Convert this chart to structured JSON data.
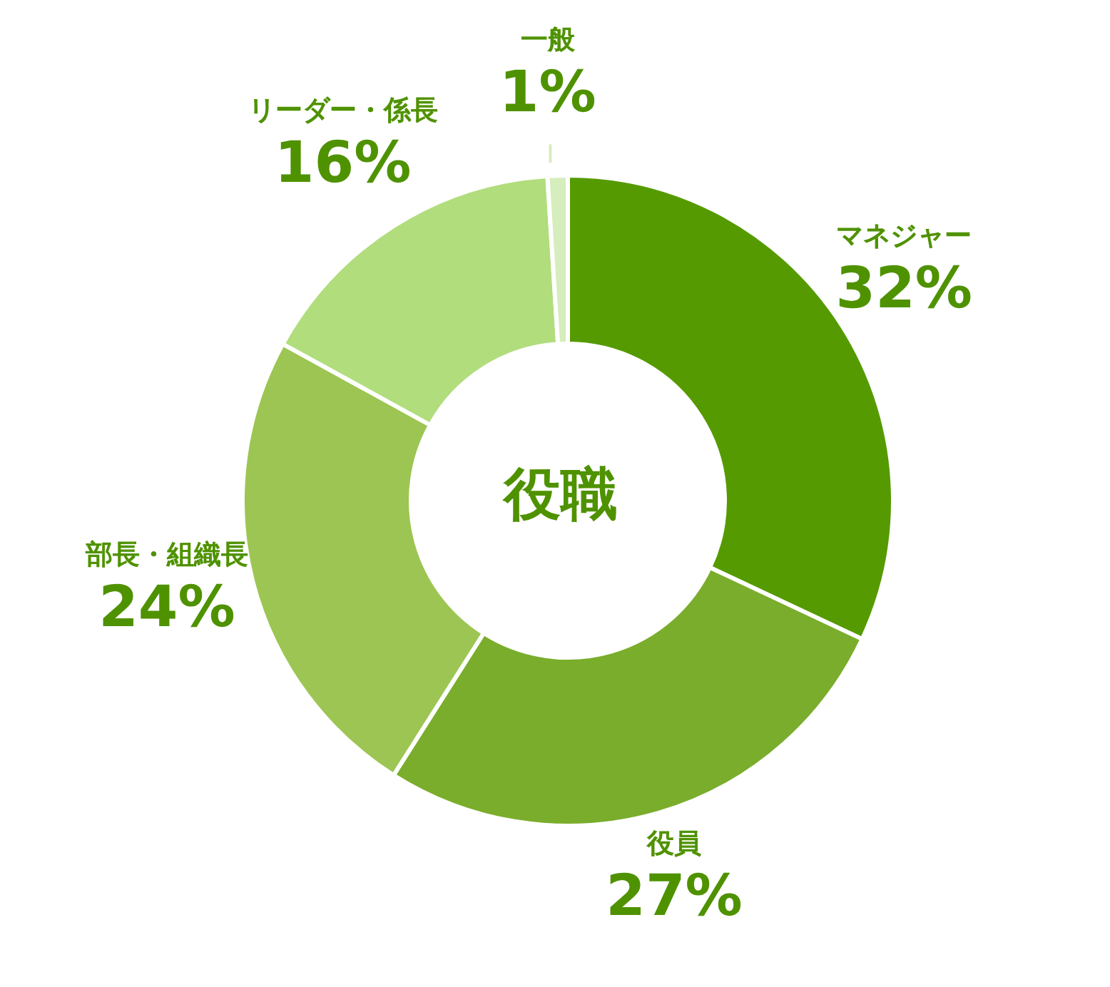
{
  "chart_data": {
    "type": "donut",
    "title": "役職",
    "categories": [
      "マネジャー",
      "役員",
      "部長・組織長",
      "リーダー・係長",
      "一般"
    ],
    "values": [
      32,
      27,
      24,
      16,
      1
    ],
    "value_labels": [
      "32%",
      "27%",
      "24%",
      "16%",
      "1%"
    ],
    "colors": [
      "#559a00",
      "#7aad2c",
      "#9dc553",
      "#b1dd7d",
      "#d6edbd"
    ]
  }
}
